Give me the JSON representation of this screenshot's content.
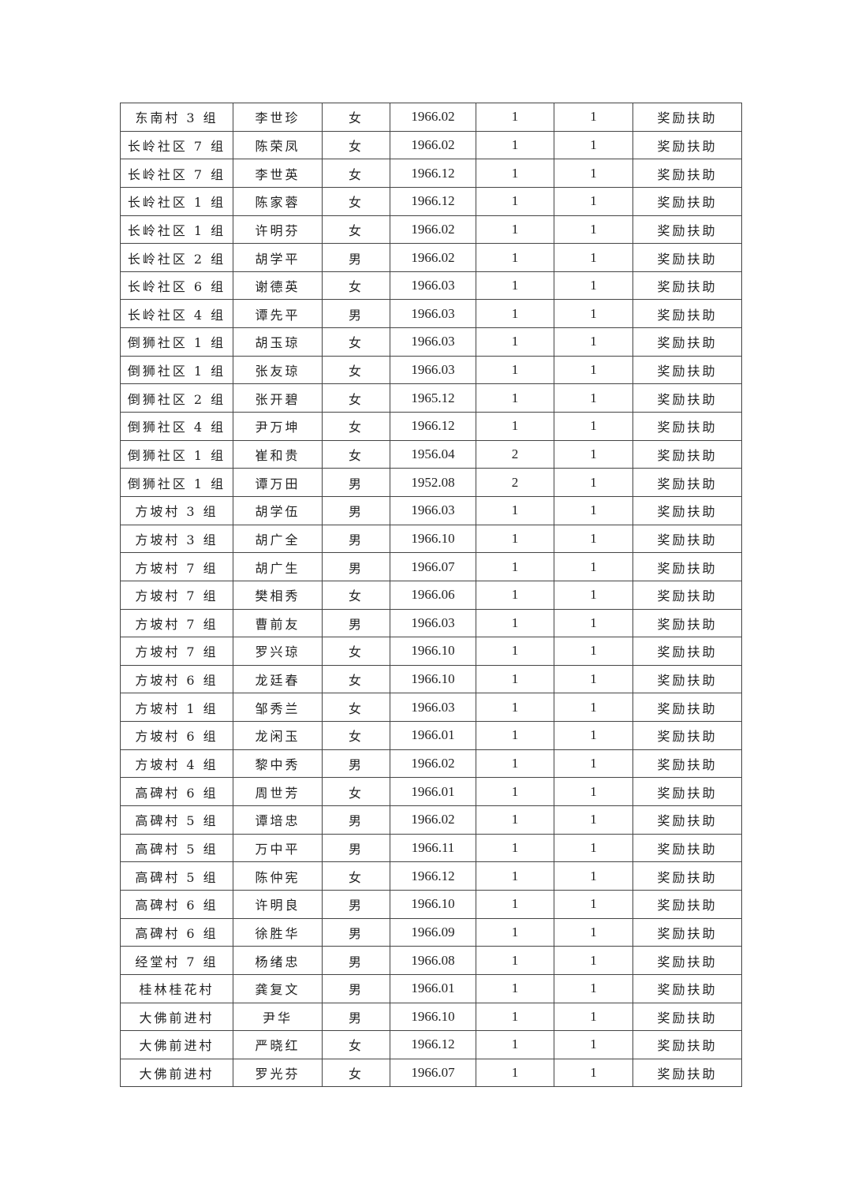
{
  "table": {
    "rows": [
      [
        "东南村 3 组",
        "李世珍",
        "女",
        "1966.02",
        "1",
        "1",
        "奖励扶助"
      ],
      [
        "长岭社区 7 组",
        "陈荣凤",
        "女",
        "1966.02",
        "1",
        "1",
        "奖励扶助"
      ],
      [
        "长岭社区 7 组",
        "李世英",
        "女",
        "1966.12",
        "1",
        "1",
        "奖励扶助"
      ],
      [
        "长岭社区 1 组",
        "陈家蓉",
        "女",
        "1966.12",
        "1",
        "1",
        "奖励扶助"
      ],
      [
        "长岭社区 1 组",
        "许明芬",
        "女",
        "1966.02",
        "1",
        "1",
        "奖励扶助"
      ],
      [
        "长岭社区 2 组",
        "胡学平",
        "男",
        "1966.02",
        "1",
        "1",
        "奖励扶助"
      ],
      [
        "长岭社区 6 组",
        "谢德英",
        "女",
        "1966.03",
        "1",
        "1",
        "奖励扶助"
      ],
      [
        "长岭社区 4 组",
        "谭先平",
        "男",
        "1966.03",
        "1",
        "1",
        "奖励扶助"
      ],
      [
        "倒狮社区 1 组",
        "胡玉琼",
        "女",
        "1966.03",
        "1",
        "1",
        "奖励扶助"
      ],
      [
        "倒狮社区 1 组",
        "张友琼",
        "女",
        "1966.03",
        "1",
        "1",
        "奖励扶助"
      ],
      [
        "倒狮社区 2 组",
        "张开碧",
        "女",
        "1965.12",
        "1",
        "1",
        "奖励扶助"
      ],
      [
        "倒狮社区 4 组",
        "尹万坤",
        "女",
        "1966.12",
        "1",
        "1",
        "奖励扶助"
      ],
      [
        "倒狮社区 1 组",
        "崔和贵",
        "女",
        "1956.04",
        "2",
        "1",
        "奖励扶助"
      ],
      [
        "倒狮社区 1 组",
        "谭万田",
        "男",
        "1952.08",
        "2",
        "1",
        "奖励扶助"
      ],
      [
        "方坡村 3 组",
        "胡学伍",
        "男",
        "1966.03",
        "1",
        "1",
        "奖励扶助"
      ],
      [
        "方坡村 3 组",
        "胡广全",
        "男",
        "1966.10",
        "1",
        "1",
        "奖励扶助"
      ],
      [
        "方坡村 7 组",
        "胡广生",
        "男",
        "1966.07",
        "1",
        "1",
        "奖励扶助"
      ],
      [
        "方坡村 7 组",
        "樊相秀",
        "女",
        "1966.06",
        "1",
        "1",
        "奖励扶助"
      ],
      [
        "方坡村 7 组",
        "曹前友",
        "男",
        "1966.03",
        "1",
        "1",
        "奖励扶助"
      ],
      [
        "方坡村 7 组",
        "罗兴琼",
        "女",
        "1966.10",
        "1",
        "1",
        "奖励扶助"
      ],
      [
        "方坡村 6 组",
        "龙廷春",
        "女",
        "1966.10",
        "1",
        "1",
        "奖励扶助"
      ],
      [
        "方坡村 1 组",
        "邹秀兰",
        "女",
        "1966.03",
        "1",
        "1",
        "奖励扶助"
      ],
      [
        "方坡村 6 组",
        "龙闲玉",
        "女",
        "1966.01",
        "1",
        "1",
        "奖励扶助"
      ],
      [
        "方坡村 4 组",
        "黎中秀",
        "男",
        "1966.02",
        "1",
        "1",
        "奖励扶助"
      ],
      [
        "高碑村 6 组",
        "周世芳",
        "女",
        "1966.01",
        "1",
        "1",
        "奖励扶助"
      ],
      [
        "高碑村 5 组",
        "谭培忠",
        "男",
        "1966.02",
        "1",
        "1",
        "奖励扶助"
      ],
      [
        "高碑村 5 组",
        "万中平",
        "男",
        "1966.11",
        "1",
        "1",
        "奖励扶助"
      ],
      [
        "高碑村 5 组",
        "陈仲宪",
        "女",
        "1966.12",
        "1",
        "1",
        "奖励扶助"
      ],
      [
        "高碑村 6 组",
        "许明良",
        "男",
        "1966.10",
        "1",
        "1",
        "奖励扶助"
      ],
      [
        "高碑村 6 组",
        "徐胜华",
        "男",
        "1966.09",
        "1",
        "1",
        "奖励扶助"
      ],
      [
        "经堂村 7 组",
        "杨绪忠",
        "男",
        "1966.08",
        "1",
        "1",
        "奖励扶助"
      ],
      [
        "桂林桂花村",
        "龚复文",
        "男",
        "1966.01",
        "1",
        "1",
        "奖励扶助"
      ],
      [
        "大佛前进村",
        "尹华",
        "男",
        "1966.10",
        "1",
        "1",
        "奖励扶助"
      ],
      [
        "大佛前进村",
        "严晓红",
        "女",
        "1966.12",
        "1",
        "1",
        "奖励扶助"
      ],
      [
        "大佛前进村",
        "罗光芬",
        "女",
        "1966.07",
        "1",
        "1",
        "奖励扶助"
      ]
    ]
  }
}
